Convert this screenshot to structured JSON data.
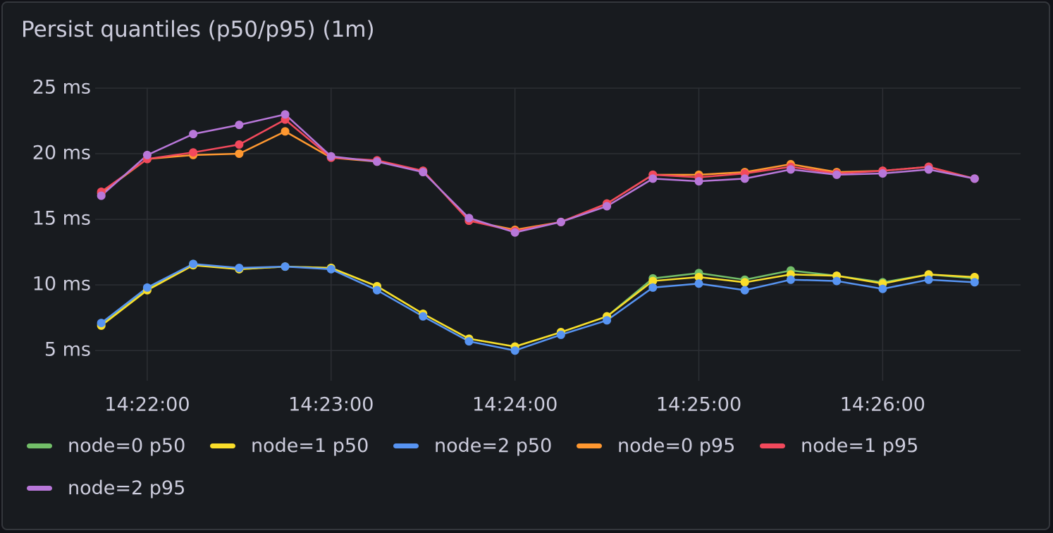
{
  "chart_data": {
    "type": "line",
    "title": "Persist quantiles (p50/p95) (1m)",
    "x": [
      "14:21:45",
      "14:22:00",
      "14:22:15",
      "14:22:30",
      "14:22:45",
      "14:23:00",
      "14:23:15",
      "14:23:30",
      "14:23:45",
      "14:24:00",
      "14:24:15",
      "14:24:30",
      "14:24:45",
      "14:25:00",
      "14:25:15",
      "14:25:30",
      "14:25:45",
      "14:26:00",
      "14:26:15",
      "14:26:30"
    ],
    "xlim": [
      "14:21:43",
      "14:26:45"
    ],
    "xticks": [
      "14:22:00",
      "14:23:00",
      "14:24:00",
      "14:25:00",
      "14:26:00"
    ],
    "ylim": [
      2.7,
      25
    ],
    "yticks": [
      {
        "value": 5,
        "label": "5 ms"
      },
      {
        "value": 10,
        "label": "10 ms"
      },
      {
        "value": 15,
        "label": "15 ms"
      },
      {
        "value": 20,
        "label": "20 ms"
      },
      {
        "value": 25,
        "label": "25 ms"
      }
    ],
    "grid": true,
    "series": [
      {
        "name": "node=0 p50",
        "color": "#73bf69",
        "values": [
          7.0,
          9.7,
          11.6,
          11.2,
          11.4,
          11.3,
          9.9,
          7.8,
          5.9,
          5.3,
          6.4,
          7.6,
          10.5,
          10.9,
          10.4,
          11.1,
          10.7,
          10.2,
          10.8,
          10.5
        ]
      },
      {
        "name": "node=1 p50",
        "color": "#fade2a",
        "values": [
          6.9,
          9.6,
          11.5,
          11.2,
          11.4,
          11.3,
          9.9,
          7.8,
          5.9,
          5.3,
          6.4,
          7.6,
          10.3,
          10.6,
          10.2,
          10.8,
          10.7,
          10.1,
          10.8,
          10.6
        ]
      },
      {
        "name": "node=2 p50",
        "color": "#5794f2",
        "values": [
          7.1,
          9.8,
          11.6,
          11.3,
          11.4,
          11.2,
          9.6,
          7.6,
          5.7,
          5.0,
          6.2,
          7.3,
          9.8,
          10.1,
          9.6,
          10.4,
          10.3,
          9.7,
          10.4,
          10.2
        ]
      },
      {
        "name": "node=0 p95",
        "color": "#ff9830",
        "values": [
          17.0,
          19.6,
          19.9,
          20.0,
          21.7,
          19.7,
          19.4,
          18.7,
          14.9,
          14.2,
          14.8,
          16.2,
          18.4,
          18.4,
          18.6,
          19.2,
          18.6,
          18.7,
          19.0,
          18.1
        ]
      },
      {
        "name": "node=1 p95",
        "color": "#f2495c",
        "values": [
          17.1,
          19.6,
          20.1,
          20.7,
          22.6,
          19.7,
          19.5,
          18.7,
          14.9,
          14.1,
          14.8,
          16.2,
          18.4,
          18.2,
          18.5,
          19.0,
          18.5,
          18.7,
          19.0,
          18.1
        ]
      },
      {
        "name": "node=2 p95",
        "color": "#b877d9",
        "values": [
          16.8,
          19.9,
          21.5,
          22.2,
          23.0,
          19.8,
          19.4,
          18.6,
          15.1,
          14.0,
          14.8,
          16.0,
          18.1,
          17.9,
          18.1,
          18.8,
          18.4,
          18.5,
          18.8,
          18.1
        ]
      }
    ]
  }
}
